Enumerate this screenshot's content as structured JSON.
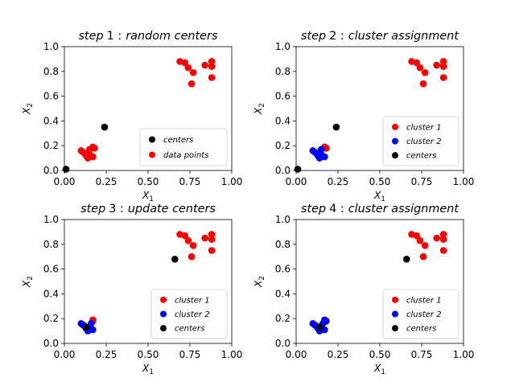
{
  "chart_data": [
    {
      "type": "scatter",
      "title": "step 1 : random centers",
      "title_parts": [
        "step",
        "1 :",
        "random centers"
      ],
      "xlabel": "X",
      "xlabel_sub": "1",
      "ylabel": "X",
      "ylabel_sub": "2",
      "xlim": [
        0,
        1
      ],
      "ylim": [
        0,
        1
      ],
      "xticks": [
        "0.00",
        "0.25",
        "0.50",
        "0.75",
        "1.00"
      ],
      "yticks": [
        "0.0",
        "0.2",
        "0.4",
        "0.6",
        "0.8",
        "1.0"
      ],
      "grid": false,
      "legend_position": "lower-right",
      "series": [
        {
          "name": "centers",
          "color": "#000000",
          "points": [
            [
              0.01,
              0.01
            ],
            [
              0.24,
              0.35
            ]
          ]
        },
        {
          "name": "data points",
          "color": "#ff0000",
          "points": [
            [
              0.69,
              0.88
            ],
            [
              0.72,
              0.87
            ],
            [
              0.74,
              0.83
            ],
            [
              0.77,
              0.79
            ],
            [
              0.76,
              0.7
            ],
            [
              0.84,
              0.85
            ],
            [
              0.88,
              0.88
            ],
            [
              0.88,
              0.84
            ],
            [
              0.88,
              0.75
            ],
            [
              0.1,
              0.16
            ],
            [
              0.11,
              0.15
            ],
            [
              0.12,
              0.14
            ],
            [
              0.13,
              0.12
            ],
            [
              0.14,
              0.1
            ],
            [
              0.15,
              0.13
            ],
            [
              0.15,
              0.17
            ],
            [
              0.17,
              0.19
            ],
            [
              0.17,
              0.11
            ],
            [
              0.18,
              0.18
            ]
          ]
        }
      ]
    },
    {
      "type": "scatter",
      "title": "step 2 : cluster assignment",
      "title_parts": [
        "step",
        "2 :",
        "cluster assignment"
      ],
      "xlabel": "X",
      "xlabel_sub": "1",
      "ylabel": "X",
      "ylabel_sub": "2",
      "xlim": [
        0,
        1
      ],
      "ylim": [
        0,
        1
      ],
      "xticks": [
        "0.00",
        "0.25",
        "0.50",
        "0.75",
        "1.00"
      ],
      "yticks": [
        "0.0",
        "0.2",
        "0.4",
        "0.6",
        "0.8",
        "1.0"
      ],
      "grid": false,
      "legend_position": "lower-right",
      "series": [
        {
          "name": "cluster 1",
          "color": "#ff0000",
          "points": [
            [
              0.69,
              0.88
            ],
            [
              0.72,
              0.87
            ],
            [
              0.74,
              0.83
            ],
            [
              0.77,
              0.79
            ],
            [
              0.76,
              0.7
            ],
            [
              0.84,
              0.85
            ],
            [
              0.88,
              0.88
            ],
            [
              0.88,
              0.84
            ],
            [
              0.88,
              0.75
            ],
            [
              0.17,
              0.19
            ],
            [
              0.18,
              0.18
            ]
          ]
        },
        {
          "name": "cluster 2",
          "color": "#0000ff",
          "points": [
            [
              0.1,
              0.16
            ],
            [
              0.11,
              0.15
            ],
            [
              0.12,
              0.14
            ],
            [
              0.13,
              0.12
            ],
            [
              0.14,
              0.1
            ],
            [
              0.15,
              0.13
            ],
            [
              0.15,
              0.17
            ],
            [
              0.17,
              0.11
            ]
          ]
        },
        {
          "name": "centers",
          "color": "#000000",
          "points": [
            [
              0.01,
              0.01
            ],
            [
              0.24,
              0.35
            ]
          ]
        }
      ]
    },
    {
      "type": "scatter",
      "title": "step 3 : update centers",
      "title_parts": [
        "step",
        "3 :",
        "update centers"
      ],
      "xlabel": "X",
      "xlabel_sub": "1",
      "ylabel": "X",
      "ylabel_sub": "2",
      "xlim": [
        0,
        1
      ],
      "ylim": [
        0,
        1
      ],
      "xticks": [
        "0.00",
        "0.25",
        "0.50",
        "0.75",
        "1.00"
      ],
      "yticks": [
        "0.0",
        "0.2",
        "0.4",
        "0.6",
        "0.8",
        "1.0"
      ],
      "grid": false,
      "legend_position": "lower-right",
      "series": [
        {
          "name": "cluster 1",
          "color": "#ff0000",
          "points": [
            [
              0.69,
              0.88
            ],
            [
              0.72,
              0.87
            ],
            [
              0.74,
              0.83
            ],
            [
              0.77,
              0.79
            ],
            [
              0.76,
              0.7
            ],
            [
              0.84,
              0.85
            ],
            [
              0.88,
              0.88
            ],
            [
              0.88,
              0.84
            ],
            [
              0.88,
              0.75
            ],
            [
              0.17,
              0.19
            ],
            [
              0.17,
              0.18
            ]
          ]
        },
        {
          "name": "cluster 2",
          "color": "#0000ff",
          "points": [
            [
              0.1,
              0.16
            ],
            [
              0.11,
              0.15
            ],
            [
              0.12,
              0.14
            ],
            [
              0.13,
              0.12
            ],
            [
              0.14,
              0.1
            ],
            [
              0.15,
              0.13
            ],
            [
              0.16,
              0.16
            ],
            [
              0.17,
              0.11
            ]
          ]
        },
        {
          "name": "centers",
          "color": "#000000",
          "points": [
            [
              0.66,
              0.68
            ],
            [
              0.13,
              0.13
            ]
          ]
        }
      ]
    },
    {
      "type": "scatter",
      "title": "step 4 : cluster assignment",
      "title_parts": [
        "step",
        "4 :",
        "cluster assignment"
      ],
      "xlabel": "X",
      "xlabel_sub": "1",
      "ylabel": "X",
      "ylabel_sub": "2",
      "xlim": [
        0,
        1
      ],
      "ylim": [
        0,
        1
      ],
      "xticks": [
        "0.00",
        "0.25",
        "0.50",
        "0.75",
        "1.00"
      ],
      "yticks": [
        "0.0",
        "0.2",
        "0.4",
        "0.6",
        "0.8",
        "1.0"
      ],
      "grid": false,
      "legend_position": "lower-right",
      "series": [
        {
          "name": "cluster 1",
          "color": "#ff0000",
          "points": [
            [
              0.69,
              0.88
            ],
            [
              0.72,
              0.87
            ],
            [
              0.74,
              0.83
            ],
            [
              0.77,
              0.79
            ],
            [
              0.76,
              0.7
            ],
            [
              0.84,
              0.85
            ],
            [
              0.88,
              0.88
            ],
            [
              0.88,
              0.84
            ],
            [
              0.88,
              0.75
            ]
          ]
        },
        {
          "name": "cluster 2",
          "color": "#0000ff",
          "points": [
            [
              0.1,
              0.16
            ],
            [
              0.11,
              0.15
            ],
            [
              0.12,
              0.14
            ],
            [
              0.13,
              0.12
            ],
            [
              0.14,
              0.1
            ],
            [
              0.15,
              0.13
            ],
            [
              0.16,
              0.16
            ],
            [
              0.17,
              0.11
            ],
            [
              0.17,
              0.19
            ],
            [
              0.18,
              0.18
            ]
          ]
        },
        {
          "name": "centers",
          "color": "#000000",
          "points": [
            [
              0.66,
              0.68
            ],
            [
              0.14,
              0.13
            ]
          ]
        }
      ]
    }
  ]
}
